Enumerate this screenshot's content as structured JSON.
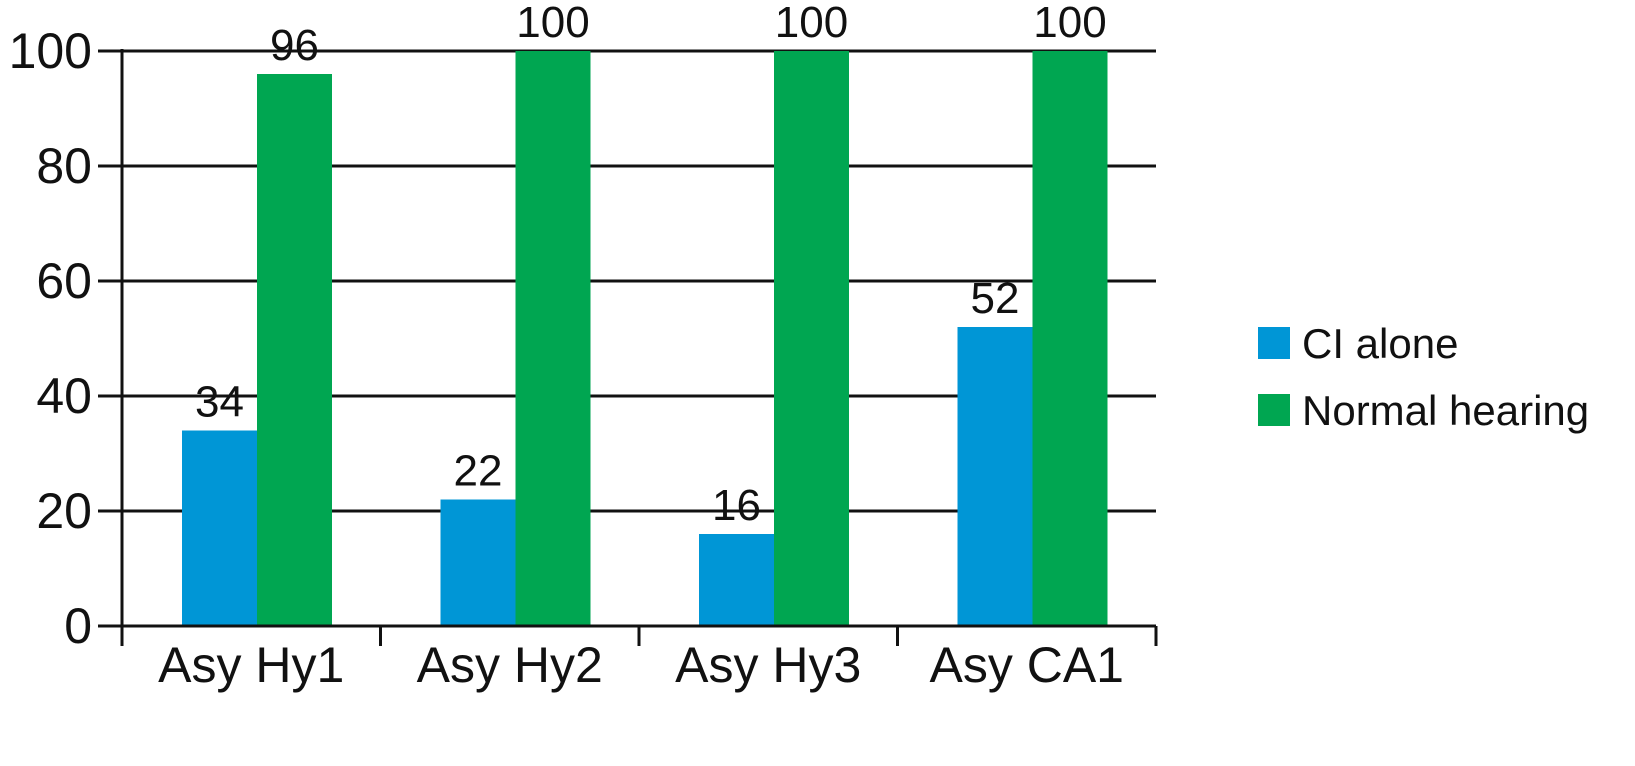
{
  "chart_data": {
    "type": "bar",
    "categories": [
      "Asy Hy1",
      "Asy Hy2",
      "Asy Hy3",
      "Asy CA1"
    ],
    "series": [
      {
        "name": "CI alone",
        "values": [
          34,
          22,
          16,
          52
        ],
        "data_labels": [
          "34",
          "22",
          "16",
          "52"
        ],
        "color": "#0096d6"
      },
      {
        "name": "Normal hearing",
        "values": [
          96,
          100,
          100,
          100
        ],
        "data_labels": [
          "96",
          "100",
          "100",
          "100"
        ],
        "color": "#00a651"
      }
    ],
    "title": "",
    "xlabel": "",
    "ylabel": "",
    "ylim": [
      0,
      100
    ],
    "yticks": [
      0,
      20,
      40,
      60,
      80,
      100
    ],
    "ytick_labels": [
      "0",
      "20",
      "40",
      "60",
      "80",
      "100"
    ],
    "grid": true,
    "legend_position": "right"
  }
}
